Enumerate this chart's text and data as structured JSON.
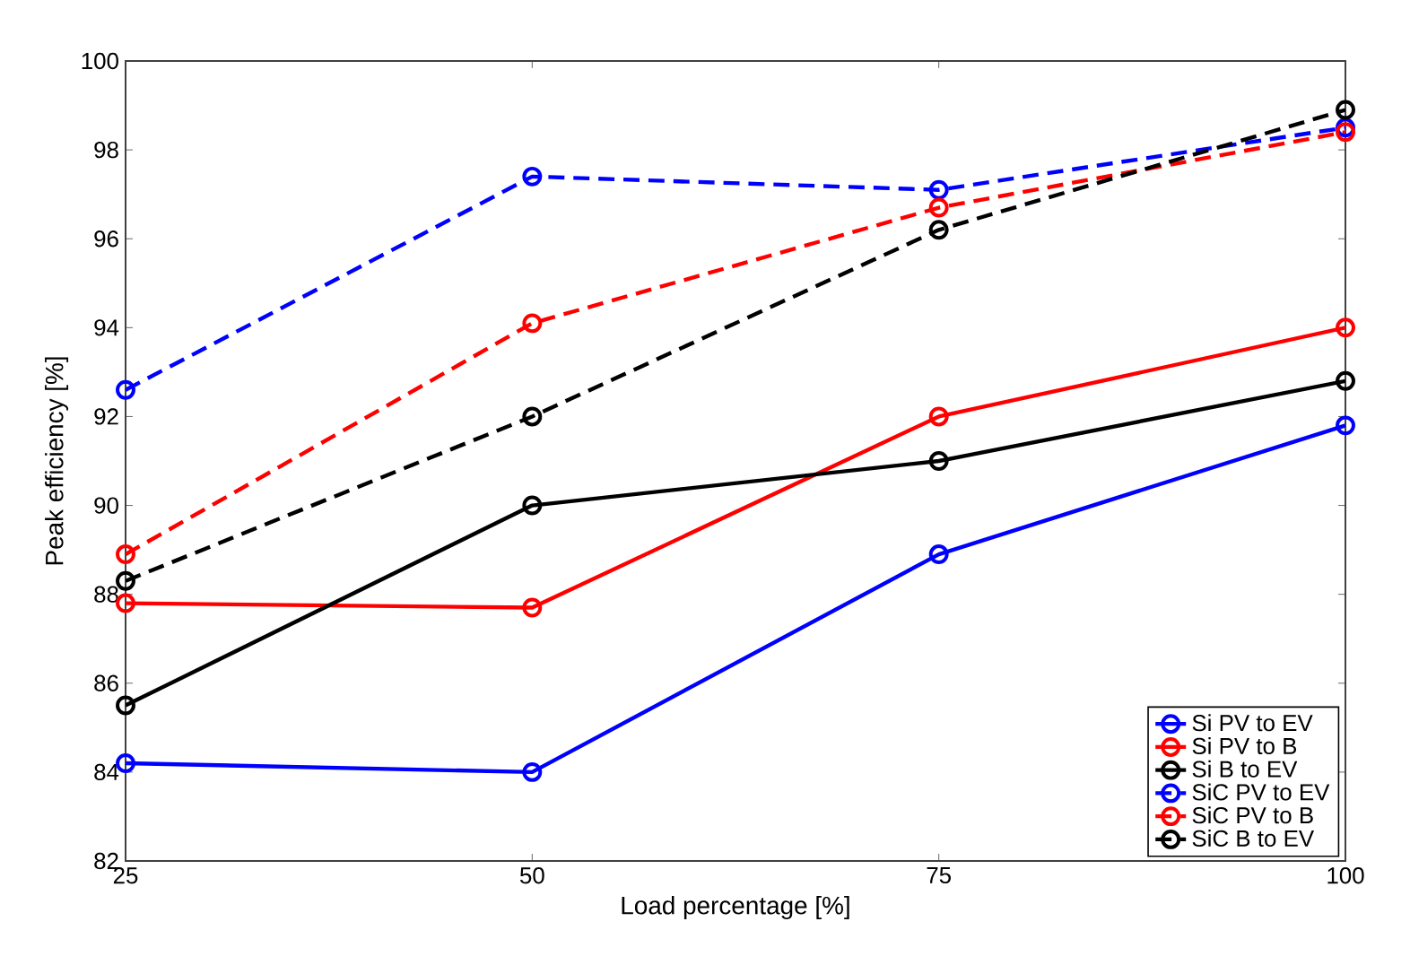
{
  "chart_data": {
    "type": "line",
    "xlabel": "Load percentage [%]",
    "ylabel": "Peak efficiency [%]",
    "x": [
      25,
      50,
      75,
      100
    ],
    "xlim": [
      25,
      100
    ],
    "xticks": [
      25,
      50,
      75,
      100
    ],
    "ylim": [
      82,
      100
    ],
    "yticks": [
      82,
      84,
      86,
      88,
      90,
      92,
      94,
      96,
      98,
      100
    ],
    "grid": false,
    "legend": "bottom right",
    "marker": "circle",
    "series": [
      {
        "name": "Si PV to EV",
        "color": "#0000ff",
        "line_style": "solid",
        "values": [
          84.2,
          84.0,
          88.9,
          91.8
        ]
      },
      {
        "name": "Si PV to B",
        "color": "#ff0000",
        "line_style": "solid",
        "values": [
          87.8,
          87.7,
          92.0,
          94.0
        ]
      },
      {
        "name": "Si B to EV",
        "color": "#000000",
        "line_style": "solid",
        "values": [
          85.5,
          90.0,
          91.0,
          92.8
        ]
      },
      {
        "name": "SiC PV to EV",
        "color": "#0000ff",
        "line_style": "dashed",
        "values": [
          92.6,
          97.4,
          97.1,
          98.5
        ]
      },
      {
        "name": "SiC PV to B",
        "color": "#ff0000",
        "line_style": "dashed",
        "values": [
          88.9,
          94.1,
          96.7,
          98.4
        ]
      },
      {
        "name": "SiC B to EV",
        "color": "#000000",
        "line_style": "dashed",
        "values": [
          88.3,
          92.0,
          96.2,
          98.9
        ]
      }
    ]
  }
}
